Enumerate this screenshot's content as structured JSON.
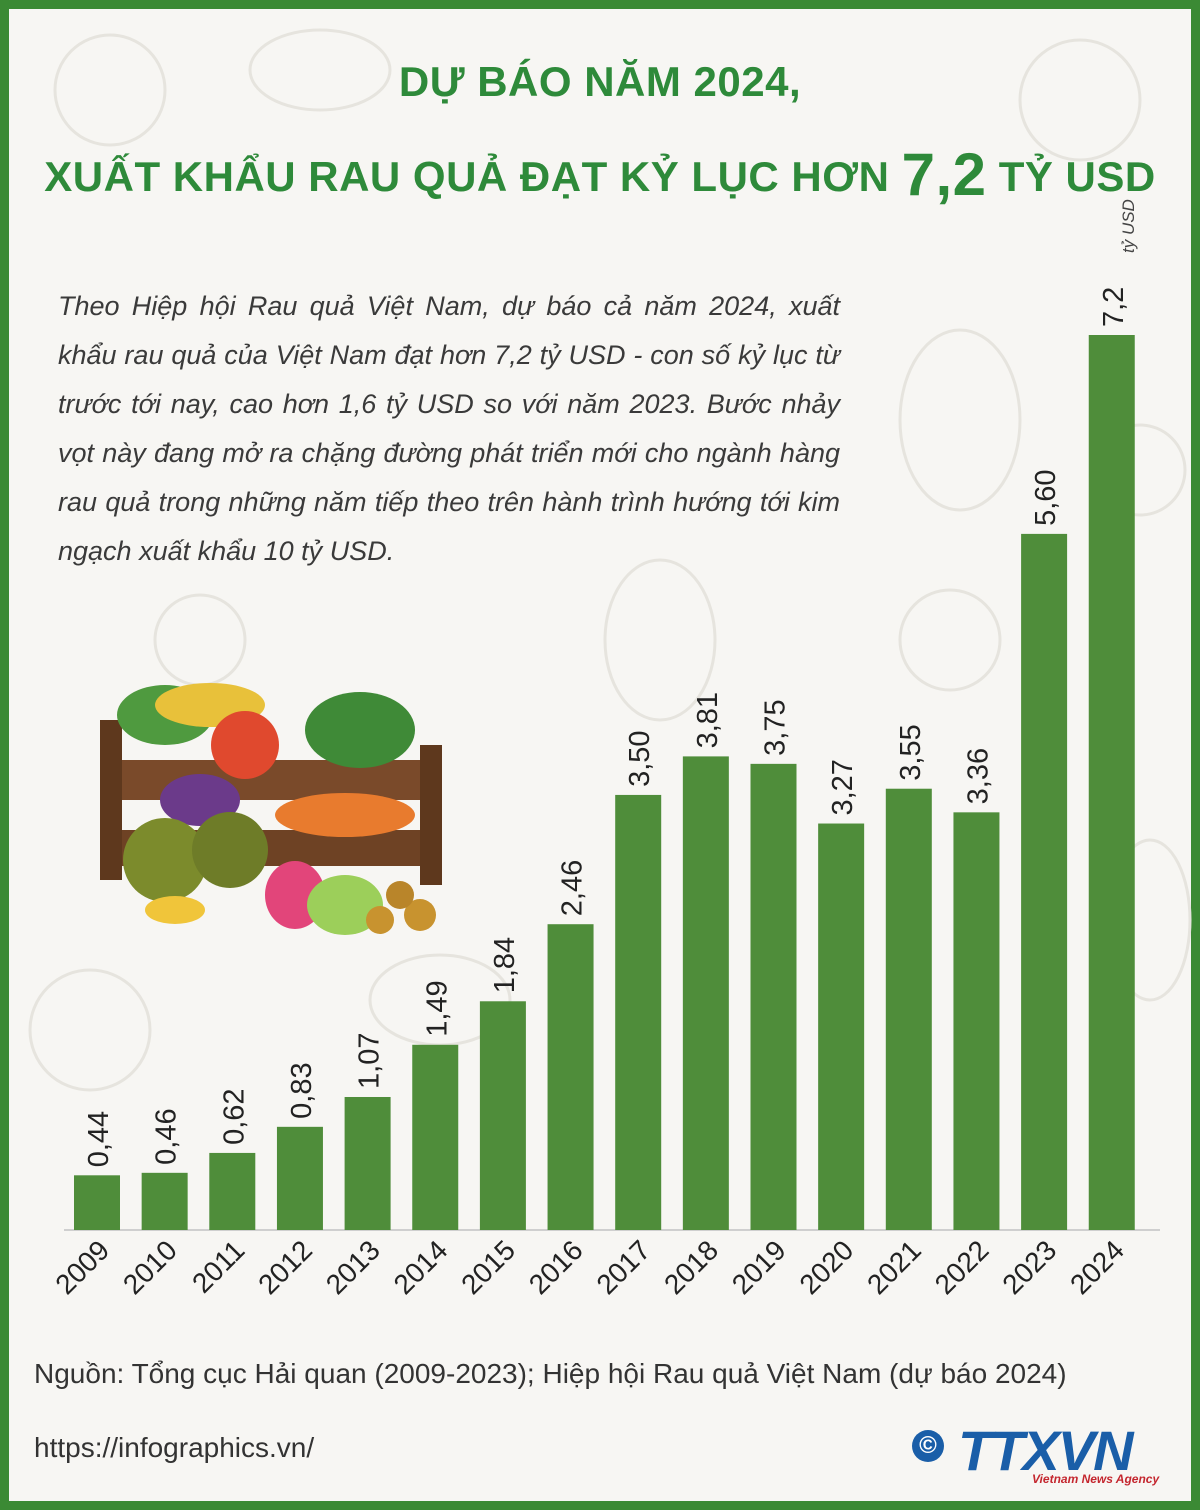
{
  "header": {
    "title_line1": "DỰ BÁO NĂM 2024,",
    "title_line2_prefix": "XUẤT KHẨU RAU QUẢ ĐẠT KỶ LỤC HƠN",
    "title_line2_number": "7,2",
    "title_line2_suffix": "TỶ USD"
  },
  "intro": "Theo Hiệp hội Rau quả Việt Nam, dự báo cả năm 2024, xuất khẩu rau quả của Việt Nam đạt hơn 7,2 tỷ USD - con số kỷ lục từ trước tới nay, cao hơn 1,6 tỷ USD so với năm 2023. Bước nhảy vọt này đang mở ra chặng đường phát triển mới cho ngành hàng rau quả trong những năm tiếp theo trên hành trình hướng tới kim ngạch xuất khẩu 10 tỷ USD.",
  "chart_data": {
    "type": "bar",
    "categories": [
      "2009",
      "2010",
      "2011",
      "2012",
      "2013",
      "2014",
      "2015",
      "2016",
      "2017",
      "2018",
      "2019",
      "2020",
      "2021",
      "2022",
      "2023",
      "2024"
    ],
    "values": [
      0.44,
      0.46,
      0.62,
      0.83,
      1.07,
      1.49,
      1.84,
      2.46,
      3.5,
      3.81,
      3.75,
      3.27,
      3.55,
      3.36,
      5.6,
      7.2
    ],
    "labels": [
      "0,44",
      "0,46",
      "0,62",
      "0,83",
      "1,07",
      "1,49",
      "1,84",
      "2,46",
      "3,50",
      "3,81",
      "3,75",
      "3,27",
      "3,55",
      "3,36",
      "5,60",
      "7,2"
    ],
    "unit_note": "tỷ USD",
    "bar_color": "#4f8d3a",
    "ylim": [
      0,
      7.2
    ]
  },
  "footer": {
    "source": "Nguồn: Tổng cục Hải quan (2009-2023); Hiệp hội Rau quả Việt Nam (dự báo 2024)",
    "url": "https://infographics.vn/",
    "logo_symbol": "©",
    "logo_text": "TTXVN",
    "logo_sub": "Vietnam News Agency"
  },
  "colors": {
    "frame": "#3b8a34",
    "title": "#2e8a3a",
    "logo": "#1a5ea8"
  }
}
